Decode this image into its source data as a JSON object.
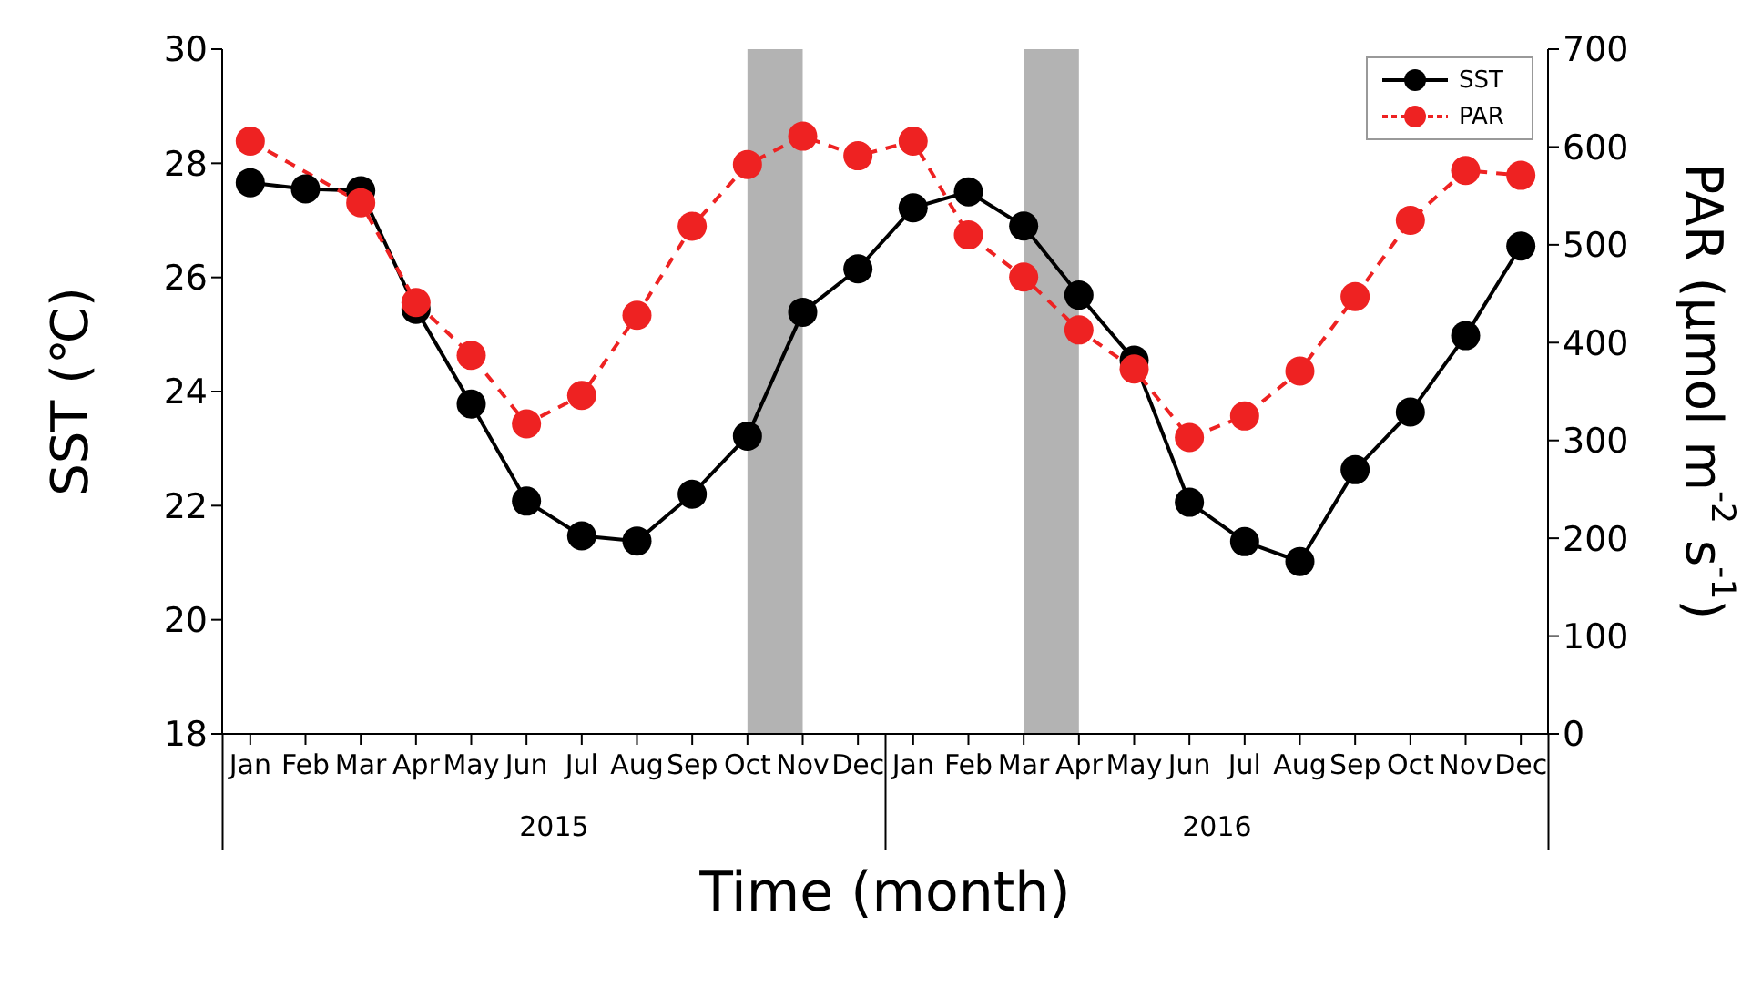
{
  "chart_data": {
    "type": "line",
    "xlabel": "Time (month)",
    "ylabel": "SST (℃)",
    "y2label": "PAR (μmol m$^{-2}$ s$^{-1}$)",
    "x": [
      "2015-01",
      "2015-02",
      "2015-03",
      "2015-04",
      "2015-05",
      "2015-06",
      "2015-07",
      "2015-08",
      "2015-09",
      "2015-10",
      "2015-11",
      "2015-12",
      "2016-01",
      "2016-02",
      "2016-03",
      "2016-04",
      "2016-05",
      "2016-06",
      "2016-07",
      "2016-08",
      "2016-09",
      "2016-10",
      "2016-11",
      "2016-12"
    ],
    "xlim": [
      "2014-12-16",
      "2016-12-16"
    ],
    "xticks": [
      {
        "value": "2015-01",
        "label": "Jan"
      },
      {
        "value": "2015-02",
        "label": "Feb"
      },
      {
        "value": "2015-03",
        "label": "Mar"
      },
      {
        "value": "2015-04",
        "label": "Apr"
      },
      {
        "value": "2015-05",
        "label": "May"
      },
      {
        "value": "2015-06",
        "label": "Jun"
      },
      {
        "value": "2015-07",
        "label": "Jul"
      },
      {
        "value": "2015-08",
        "label": "Aug"
      },
      {
        "value": "2015-09",
        "label": "Sep"
      },
      {
        "value": "2015-10",
        "label": "Oct"
      },
      {
        "value": "2015-11",
        "label": "Nov"
      },
      {
        "value": "2015-12",
        "label": "Dec"
      },
      {
        "value": "2016-01",
        "label": "Jan"
      },
      {
        "value": "2016-02",
        "label": "Feb"
      },
      {
        "value": "2016-03",
        "label": "Mar"
      },
      {
        "value": "2016-04",
        "label": "Apr"
      },
      {
        "value": "2016-05",
        "label": "May"
      },
      {
        "value": "2016-06",
        "label": "Jun"
      },
      {
        "value": "2016-07",
        "label": "Jul"
      },
      {
        "value": "2016-08",
        "label": "Aug"
      },
      {
        "value": "2016-09",
        "label": "Sep"
      },
      {
        "value": "2016-10",
        "label": "Oct"
      },
      {
        "value": "2016-11",
        "label": "Nov"
      },
      {
        "value": "2016-12",
        "label": "Dec"
      }
    ],
    "annotations": [
      "2015",
      "2016"
    ],
    "ylim": [
      18,
      30
    ],
    "yticks": [
      18,
      20,
      22,
      24,
      26,
      28,
      30
    ],
    "y2lim": [
      0,
      700
    ],
    "y2ticks": [
      0,
      100,
      200,
      300,
      400,
      500,
      600,
      700
    ],
    "series": [
      {
        "name": "SST",
        "color": "#000000",
        "line_style": "solid",
        "values": [
          27.66,
          27.55,
          27.52,
          25.44,
          23.78,
          22.08,
          21.47,
          21.38,
          22.2,
          23.22,
          25.39,
          26.15,
          27.22,
          27.5,
          26.9,
          25.69,
          24.55,
          22.06,
          21.37,
          21.02,
          22.63,
          23.64,
          24.98,
          26.55
        ]
      },
      {
        "name": "PAR",
        "color": "#ee2222",
        "line_style": "dashed",
        "axis": "y2",
        "values": [
          606,
          null,
          543,
          441,
          387,
          317,
          346,
          428,
          519,
          582,
          611,
          591,
          606,
          510,
          467,
          413,
          373,
          303,
          325,
          371,
          447,
          525,
          576,
          571
        ]
      }
    ],
    "bands": [
      {
        "axis": "x",
        "from": "2015-10",
        "to": "2015-11",
        "color": "#b3b3b3"
      },
      {
        "axis": "x",
        "from": "2016-03",
        "to": "2016-04",
        "color": "#b3b3b3"
      }
    ],
    "marker": "circle",
    "legend": "top right",
    "grid": false
  }
}
